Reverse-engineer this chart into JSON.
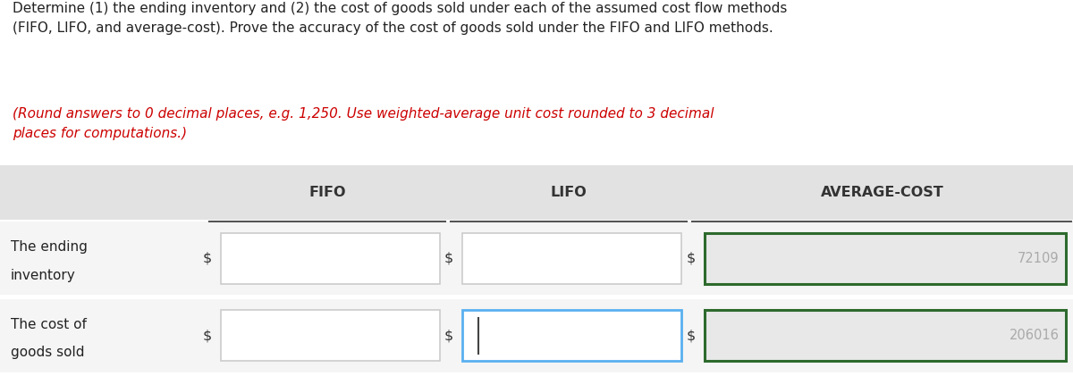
{
  "title_text_black": "Determine (1) the ending inventory and (2) the cost of goods sold under each of the assumed cost flow methods\n(FIFO, LIFO, and average-cost). Prove the accuracy of the cost of goods sold under the FIFO and LIFO methods.",
  "title_text_red": "(Round answers to 0 decimal places, e.g. 1,250. Use weighted-average unit cost rounded to 3 decimal\nplaces for computations.)",
  "col_headers": [
    "FIFO",
    "LIFO",
    "AVERAGE-COST"
  ],
  "row_labels": [
    [
      "The ending",
      "inventory"
    ],
    [
      "The cost of",
      "goods sold"
    ]
  ],
  "avg_cost_values": [
    "72109",
    "206016"
  ],
  "lifo_active_row": 1,
  "bg_color": "#ffffff",
  "table_header_bg": "#e2e2e2",
  "table_row_bg": "#f5f5f5",
  "input_box_color_normal": "#cccccc",
  "input_box_color_active": "#5ab0f0",
  "avg_box_border_color": "#2d6a2d",
  "avg_box_fill": "#e8e8e8",
  "header_line_color": "#555555",
  "dollar_sign": "$",
  "value_text_color": "#aaaaaa",
  "cursor_color": "#444444",
  "black_text_color": "#222222",
  "red_text_color": "#cc0000"
}
